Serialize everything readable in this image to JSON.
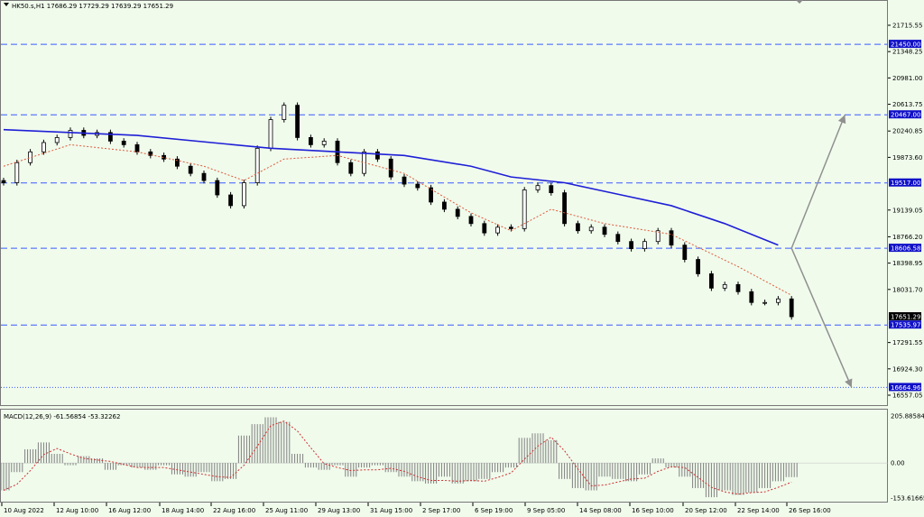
{
  "symbol_info": "HK50.s,H1  17686.29 17729.29 17639.29 17651.29",
  "macd_info": "MACD(12,26,9) -61.56854 -53.32262",
  "colors": {
    "background": "#f0fbec",
    "candle": "#000000",
    "ma_slow": "#1f1fd6",
    "ma_fast": "#e05a3a",
    "level_line": "#3b5bff",
    "level_tag": "#1010c8",
    "projection": "#909090",
    "macd_hist": "#808080",
    "macd_signal": "#d03030"
  },
  "icons": {
    "triangle": "dropdown-triangle-icon",
    "scroll_marker": "chart-shift-marker-icon"
  },
  "price_axis": {
    "ticks": [
      "21715.55",
      "21348.25",
      "20981.00",
      "20613.75",
      "20240.85",
      "19873.60",
      "19139.05",
      "18766.20",
      "18398.95",
      "18031.70",
      "17291.55",
      "16924.30",
      "16557.05"
    ]
  },
  "levels": [
    "21450.00",
    "20467.00",
    "19517.00",
    "18606.58",
    "17535.97",
    "16664.96"
  ],
  "last_price": "17651.29",
  "macd_axis": {
    "ticks": [
      "205.88584",
      "0.00",
      "-153.61665"
    ]
  },
  "time_axis": {
    "labels": [
      "10 Aug 2022",
      "12 Aug 10:00",
      "16 Aug 12:00",
      "18 Aug 14:00",
      "22 Aug 16:00",
      "25 Aug 11:00",
      "29 Aug 13:00",
      "31 Aug 15:00",
      "2 Sep 17:00",
      "6 Sep 19:00",
      "9 Sep 05:00",
      "14 Sep 08:00",
      "16 Sep 10:00",
      "20 Sep 12:00",
      "22 Sep 14:00",
      "26 Sep 16:00"
    ]
  },
  "chart_data": {
    "type": "candlestick",
    "symbol": "HK50.s",
    "timeframe": "H1",
    "ohlc_last": {
      "open": 17686.29,
      "high": 17729.29,
      "low": 17639.29,
      "close": 17651.29
    },
    "y_ticks": [
      21715.55,
      21348.25,
      20981.0,
      20613.75,
      20240.85,
      19873.6,
      19139.05,
      18766.2,
      18398.95,
      18031.7,
      17291.55,
      16924.3,
      16557.05
    ],
    "horizontal_levels": [
      21450.0,
      20467.0,
      19517.0,
      18606.58,
      17535.97,
      16664.96
    ],
    "close_path": [
      [
        0,
        19520
      ],
      [
        1,
        19800
      ],
      [
        2,
        19950
      ],
      [
        3,
        20080
      ],
      [
        4,
        20150
      ],
      [
        5,
        20250
      ],
      [
        6,
        20180
      ],
      [
        7,
        20220
      ],
      [
        8,
        20100
      ],
      [
        9,
        20050
      ],
      [
        10,
        19950
      ],
      [
        11,
        19900
      ],
      [
        12,
        19850
      ],
      [
        13,
        19750
      ],
      [
        14,
        19650
      ],
      [
        15,
        19550
      ],
      [
        16,
        19350
      ],
      [
        17,
        19200
      ],
      [
        18,
        19520
      ],
      [
        19,
        20000
      ],
      [
        20,
        20400
      ],
      [
        21,
        20600
      ],
      [
        22,
        20150
      ],
      [
        23,
        20050
      ],
      [
        24,
        20100
      ],
      [
        25,
        19800
      ],
      [
        26,
        19650
      ],
      [
        27,
        19950
      ],
      [
        28,
        19850
      ],
      [
        29,
        19600
      ],
      [
        30,
        19500
      ],
      [
        31,
        19450
      ],
      [
        32,
        19250
      ],
      [
        33,
        19150
      ],
      [
        34,
        19050
      ],
      [
        35,
        18950
      ],
      [
        36,
        18820
      ],
      [
        37,
        18900
      ],
      [
        38,
        18880
      ],
      [
        39,
        19420
      ],
      [
        40,
        19480
      ],
      [
        41,
        19380
      ],
      [
        42,
        18950
      ],
      [
        43,
        18850
      ],
      [
        44,
        18900
      ],
      [
        45,
        18800
      ],
      [
        46,
        18700
      ],
      [
        47,
        18600
      ],
      [
        48,
        18700
      ],
      [
        49,
        18850
      ],
      [
        50,
        18650
      ],
      [
        51,
        18450
      ],
      [
        52,
        18250
      ],
      [
        53,
        18050
      ],
      [
        54,
        18100
      ],
      [
        55,
        18000
      ],
      [
        56,
        17850
      ],
      [
        57,
        17850
      ],
      [
        58,
        17900
      ],
      [
        59,
        17651
      ]
    ],
    "ma_slow": [
      [
        0,
        20260
      ],
      [
        10,
        20180
      ],
      [
        20,
        20000
      ],
      [
        25,
        19950
      ],
      [
        30,
        19900
      ],
      [
        35,
        19750
      ],
      [
        38,
        19600
      ],
      [
        42,
        19520
      ],
      [
        46,
        19360
      ],
      [
        50,
        19200
      ],
      [
        54,
        18950
      ],
      [
        58,
        18650
      ]
    ],
    "ma_fast": [
      [
        0,
        19750
      ],
      [
        5,
        20050
      ],
      [
        10,
        19950
      ],
      [
        15,
        19750
      ],
      [
        18,
        19550
      ],
      [
        21,
        19850
      ],
      [
        25,
        19900
      ],
      [
        30,
        19650
      ],
      [
        35,
        19100
      ],
      [
        38,
        18850
      ],
      [
        41,
        19150
      ],
      [
        45,
        18950
      ],
      [
        50,
        18800
      ],
      [
        55,
        18350
      ],
      [
        59,
        17950
      ]
    ],
    "projection": [
      {
        "from": [
          59,
          18606.58
        ],
        "to": [
          63,
          20467.0
        ]
      },
      {
        "from": [
          59,
          18606.58
        ],
        "to": [
          63.5,
          16664.96
        ]
      }
    ],
    "macd": {
      "y_ticks": [
        205.88584,
        0.0,
        -153.61665
      ],
      "hist": [
        [
          0,
          -120
        ],
        [
          1,
          -40
        ],
        [
          2,
          60
        ],
        [
          3,
          90
        ],
        [
          4,
          40
        ],
        [
          5,
          -10
        ],
        [
          6,
          30
        ],
        [
          7,
          20
        ],
        [
          8,
          -30
        ],
        [
          9,
          -10
        ],
        [
          10,
          -20
        ],
        [
          11,
          -30
        ],
        [
          12,
          -10
        ],
        [
          13,
          -50
        ],
        [
          14,
          -60
        ],
        [
          15,
          -40
        ],
        [
          16,
          -80
        ],
        [
          17,
          -70
        ],
        [
          18,
          120
        ],
        [
          19,
          170
        ],
        [
          20,
          200
        ],
        [
          21,
          180
        ],
        [
          22,
          40
        ],
        [
          23,
          -20
        ],
        [
          24,
          -30
        ],
        [
          25,
          -10
        ],
        [
          26,
          -60
        ],
        [
          27,
          -20
        ],
        [
          28,
          -10
        ],
        [
          29,
          -40
        ],
        [
          30,
          -60
        ],
        [
          31,
          -80
        ],
        [
          32,
          -90
        ],
        [
          33,
          -60
        ],
        [
          34,
          -90
        ],
        [
          35,
          -80
        ],
        [
          36,
          -70
        ],
        [
          37,
          -40
        ],
        [
          38,
          -20
        ],
        [
          39,
          110
        ],
        [
          40,
          130
        ],
        [
          41,
          100
        ],
        [
          42,
          -70
        ],
        [
          43,
          -110
        ],
        [
          44,
          -120
        ],
        [
          45,
          -60
        ],
        [
          46,
          -70
        ],
        [
          47,
          -80
        ],
        [
          48,
          -50
        ],
        [
          49,
          20
        ],
        [
          50,
          -20
        ],
        [
          51,
          -60
        ],
        [
          52,
          -110
        ],
        [
          53,
          -150
        ],
        [
          54,
          -120
        ],
        [
          55,
          -140
        ],
        [
          56,
          -130
        ],
        [
          57,
          -110
        ],
        [
          58,
          -80
        ],
        [
          59,
          -62
        ]
      ]
    }
  }
}
